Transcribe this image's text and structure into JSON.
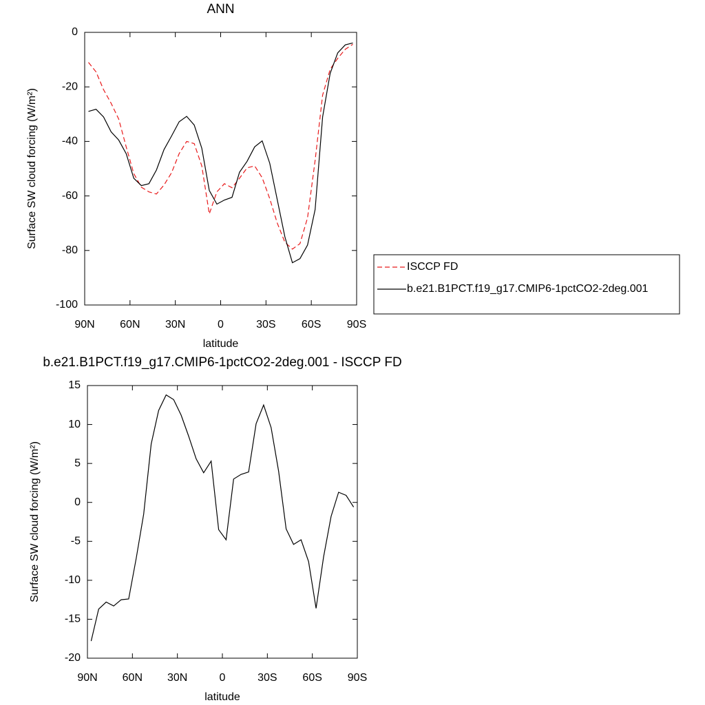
{
  "chart_data": [
    {
      "type": "line",
      "title": "ANN",
      "xlabel": "latitude",
      "ylabel": "Surface SW cloud forcing (W/m²)",
      "x": [
        87.5,
        82.5,
        77.5,
        72.5,
        67.5,
        62.5,
        57.5,
        52.5,
        47.5,
        42.5,
        37.5,
        32.5,
        27.5,
        22.5,
        17.5,
        12.5,
        7.5,
        2.5,
        -2.5,
        -7.5,
        -12.5,
        -17.5,
        -22.5,
        -27.5,
        -32.5,
        -37.5,
        -42.5,
        -47.5,
        -52.5,
        -57.5,
        -62.5,
        -67.5,
        -72.5,
        -77.5,
        -82.5,
        -87.5
      ],
      "series": [
        {
          "name": "ISCCP FD",
          "color": "#e8191a",
          "line_style": "dashed",
          "values": [
            -11,
            -14.5,
            -21,
            -26,
            -31.8,
            -42,
            -51.8,
            -56.8,
            -58.5,
            -59.3,
            -56,
            -51.5,
            -44.5,
            -40,
            -40.8,
            -49,
            -66.6,
            -58.5,
            -55.5,
            -57,
            -53.5,
            -49.7,
            -49,
            -53.3,
            -61,
            -70,
            -77,
            -79.5,
            -77.5,
            -68,
            -47,
            -23,
            -13.5,
            -9.5,
            -6.2,
            -4.4
          ]
        },
        {
          "name": "b.e21.B1PCT.f19_g17.CMIP6-1pctCO2-2deg.001",
          "color": "#000000",
          "line_style": "solid",
          "values": [
            -29,
            -28.2,
            -31,
            -36.5,
            -39.5,
            -44.5,
            -53.5,
            -56.2,
            -55.5,
            -50.5,
            -43,
            -38,
            -32.8,
            -30.8,
            -34,
            -42.5,
            -58,
            -63,
            -61.5,
            -60.5,
            -51.3,
            -47.3,
            -42,
            -39.8,
            -48,
            -61.5,
            -75,
            -84.5,
            -83,
            -78,
            -65,
            -31,
            -15,
            -7.5,
            -4.6,
            -3.9
          ]
        }
      ],
      "xlim": [
        90,
        -90
      ],
      "xticks": [
        {
          "value": 90,
          "label": "90N"
        },
        {
          "value": 60,
          "label": "60N"
        },
        {
          "value": 30,
          "label": "30N"
        },
        0,
        {
          "value": -30,
          "label": "30S"
        },
        {
          "value": -60,
          "label": "60S"
        },
        {
          "value": -90,
          "label": "90S"
        }
      ],
      "ylim": [
        -100,
        0
      ],
      "yticks": [
        0,
        -20,
        -40,
        -60,
        -80,
        -100
      ],
      "legend": "right"
    },
    {
      "type": "line",
      "title": "b.e21.B1PCT.f19_g17.CMIP6-1pctCO2-2deg.001 - ISCCP FD",
      "xlabel": "latitude",
      "ylabel": "Surface SW cloud forcing (W/m²)",
      "x": [
        87.5,
        82.5,
        77.5,
        72.5,
        67.5,
        62.5,
        57.5,
        52.5,
        47.5,
        42.5,
        37.5,
        32.5,
        27.5,
        22.5,
        17.5,
        12.5,
        7.5,
        2.5,
        -2.5,
        -7.5,
        -12.5,
        -17.5,
        -22.5,
        -27.5,
        -32.5,
        -37.5,
        -42.5,
        -47.5,
        -52.5,
        -57.5,
        -62.5,
        -67.5,
        -72.5,
        -77.5,
        -82.5,
        -87.5
      ],
      "series": [
        {
          "color": "#000000",
          "line_style": "solid",
          "values": [
            -17.8,
            -13.7,
            -12.8,
            -13.3,
            -12.5,
            -12.4,
            -7.2,
            -1.5,
            7.5,
            11.8,
            13.8,
            13.2,
            11.2,
            8.5,
            5.6,
            3.8,
            5.3,
            -3.5,
            -4.8,
            3.0,
            3.6,
            3.9,
            10.1,
            12.5,
            9.6,
            4.0,
            -3.4,
            -5.4,
            -4.8,
            -7.6,
            -13.6,
            -7.0,
            -1.8,
            1.3,
            0.9,
            -0.6
          ]
        }
      ],
      "xlim": [
        90,
        -90
      ],
      "xticks": [
        {
          "value": 90,
          "label": "90N"
        },
        {
          "value": 60,
          "label": "60N"
        },
        {
          "value": 30,
          "label": "30N"
        },
        0,
        {
          "value": -30,
          "label": "30S"
        },
        {
          "value": -60,
          "label": "60S"
        },
        {
          "value": -90,
          "label": "90S"
        }
      ],
      "ylim": [
        -20,
        15
      ],
      "yticks": [
        15,
        10,
        5,
        0,
        -5,
        -10,
        -15,
        -20
      ]
    }
  ]
}
